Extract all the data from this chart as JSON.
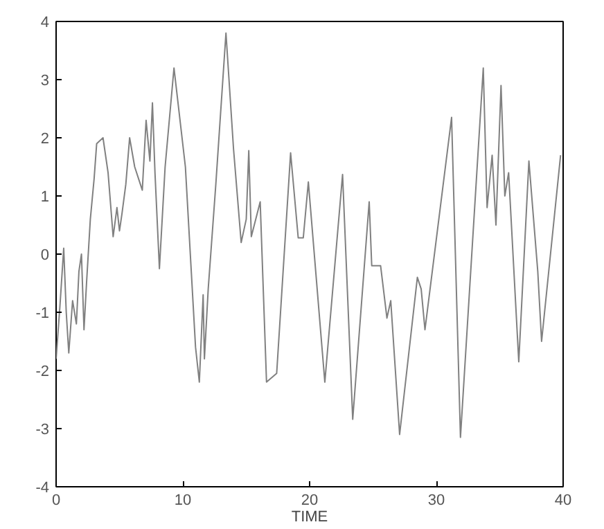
{
  "chart_data": {
    "type": "line",
    "xlabel": "TIME",
    "xlim": [
      0,
      40
    ],
    "ylim": [
      -4,
      4
    ],
    "xticks": [
      0,
      10,
      20,
      30,
      40
    ],
    "yticks": [
      -4,
      -3,
      -2,
      -1,
      0,
      1,
      2,
      3,
      4
    ],
    "grid": false,
    "x": [
      0,
      0.3,
      0.6,
      0.8,
      1.0,
      1.3,
      1.6,
      1.8,
      2.0,
      2.2,
      2.4,
      2.7,
      3.0,
      3.2,
      3.7,
      4.1,
      4.5,
      4.8,
      5.0,
      5.2,
      5.5,
      5.8,
      6.2,
      6.8,
      7.1,
      7.4,
      7.6,
      7.8,
      8.15,
      8.6,
      9.3,
      10.2,
      11.0,
      11.3,
      11.6,
      11.7,
      12.0,
      12.6,
      13.4,
      14.0,
      14.6,
      15.0,
      15.2,
      15.4,
      16.1,
      16.6,
      17.4,
      18.5,
      19.1,
      19.5,
      19.9,
      21.2,
      22.6,
      23.4,
      24.7,
      24.9,
      25.6,
      26.1,
      26.4,
      27.1,
      28.5,
      28.8,
      29.1,
      31.2,
      31.9,
      33.7,
      34.0,
      34.4,
      34.7,
      35.1,
      35.4,
      35.7,
      36.5,
      37.3,
      38.0,
      38.3,
      39.8
    ],
    "series": [
      {
        "color": "#808080",
        "values": [
          -1.8,
          -0.9,
          0.1,
          -1.0,
          -1.7,
          -0.8,
          -1.2,
          -0.3,
          0.0,
          -1.3,
          -0.5,
          0.6,
          1.3,
          1.9,
          2.0,
          1.4,
          0.3,
          0.8,
          0.4,
          0.7,
          1.2,
          2.0,
          1.5,
          1.1,
          2.3,
          1.6,
          2.6,
          1.4,
          -0.25,
          1.5,
          3.2,
          1.5,
          -1.6,
          -2.2,
          -0.7,
          -1.8,
          -0.6,
          1.2,
          3.8,
          1.8,
          0.2,
          0.6,
          1.78,
          0.3,
          0.9,
          -2.2,
          -2.05,
          1.74,
          0.28,
          0.28,
          1.24,
          -2.2,
          1.37,
          -2.84,
          0.9,
          -0.2,
          -0.2,
          -1.1,
          -0.8,
          -3.1,
          -0.4,
          -0.6,
          -1.3,
          2.35,
          -3.15,
          3.2,
          0.8,
          1.7,
          0.5,
          2.9,
          1.0,
          1.4,
          -1.85,
          1.6,
          -0.3,
          -1.5,
          1.7
        ]
      }
    ]
  }
}
